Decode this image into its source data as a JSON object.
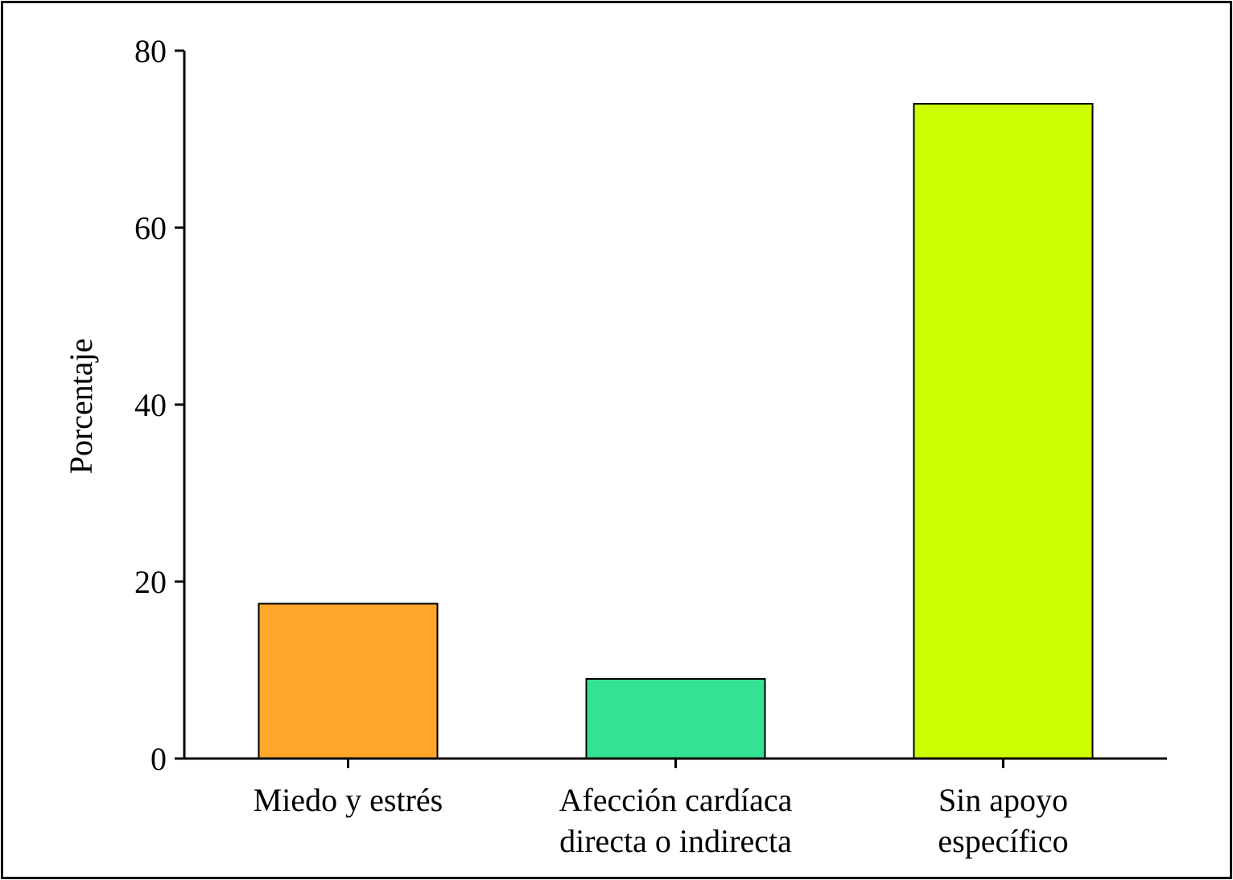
{
  "chart_data": {
    "type": "bar",
    "title": "",
    "xlabel": "",
    "ylabel": "Porcentaje",
    "ylim": [
      0,
      80
    ],
    "yticks": [
      0,
      20,
      40,
      60,
      80
    ],
    "grid": false,
    "legend": "none",
    "categories": [
      [
        "Miedo y estrés"
      ],
      [
        "Afección cardíaca",
        "directa o indirecta"
      ],
      [
        "Sin apoyo",
        "específico"
      ]
    ],
    "values": [
      17.5,
      9,
      74
    ],
    "colors": [
      "#FFA62B",
      "#33E391",
      "#CCFF00"
    ]
  }
}
